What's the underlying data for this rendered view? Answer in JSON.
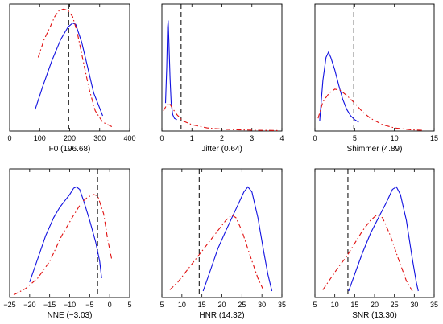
{
  "chart_data": [
    {
      "type": "line",
      "xlabel": "F0 (196.68)",
      "xlim": [
        0,
        400
      ],
      "xticks": [
        0,
        100,
        200,
        300,
        400
      ],
      "ylim": [
        0,
        1
      ],
      "grid": false,
      "marker_line": 196.68,
      "series": [
        {
          "color": "#1010e0",
          "dash": "",
          "points": [
            [
              85,
              0.17
            ],
            [
              110,
              0.35
            ],
            [
              140,
              0.55
            ],
            [
              170,
              0.72
            ],
            [
              195,
              0.82
            ],
            [
              210,
              0.85
            ],
            [
              220,
              0.84
            ],
            [
              240,
              0.7
            ],
            [
              260,
              0.5
            ],
            [
              280,
              0.3
            ],
            [
              300,
              0.18
            ],
            [
              310,
              0.12
            ]
          ]
        },
        {
          "color": "#e01010",
          "dash": "6,3,1.5,3",
          "points": [
            [
              95,
              0.58
            ],
            [
              115,
              0.72
            ],
            [
              135,
              0.82
            ],
            [
              150,
              0.9
            ],
            [
              165,
              0.95
            ],
            [
              180,
              0.96
            ],
            [
              195,
              0.95
            ],
            [
              210,
              0.9
            ],
            [
              225,
              0.78
            ],
            [
              245,
              0.55
            ],
            [
              265,
              0.33
            ],
            [
              285,
              0.16
            ],
            [
              310,
              0.07
            ],
            [
              345,
              0.03
            ]
          ]
        }
      ]
    },
    {
      "type": "line",
      "xlabel": "Jitter (0.64)",
      "xlim": [
        0,
        4
      ],
      "xticks": [
        0,
        1,
        2,
        3,
        4
      ],
      "ylim": [
        0,
        1
      ],
      "grid": false,
      "marker_line": 0.64,
      "series": [
        {
          "color": "#1010e0",
          "dash": "",
          "points": [
            [
              0.12,
              0.22
            ],
            [
              0.16,
              0.5
            ],
            [
              0.19,
              0.82
            ],
            [
              0.21,
              0.87
            ],
            [
              0.23,
              0.72
            ],
            [
              0.27,
              0.42
            ],
            [
              0.31,
              0.22
            ],
            [
              0.36,
              0.13
            ],
            [
              0.42,
              0.1
            ],
            [
              0.5,
              0.09
            ]
          ]
        },
        {
          "color": "#e01010",
          "dash": "6,3,1.5,3",
          "points": [
            [
              0.05,
              0.16
            ],
            [
              0.15,
              0.2
            ],
            [
              0.25,
              0.22
            ],
            [
              0.35,
              0.18
            ],
            [
              0.5,
              0.13
            ],
            [
              0.7,
              0.08
            ],
            [
              1.0,
              0.05
            ],
            [
              1.5,
              0.025
            ],
            [
              2.0,
              0.015
            ],
            [
              2.5,
              0.01
            ],
            [
              3.0,
              0.007
            ],
            [
              3.5,
              0.005
            ],
            [
              3.9,
              0.004
            ]
          ]
        }
      ]
    },
    {
      "type": "line",
      "xlabel": "Shimmer (4.89)",
      "xlim": [
        0,
        15
      ],
      "xticks": [
        0,
        5,
        10,
        15
      ],
      "ylim": [
        0,
        1
      ],
      "grid": false,
      "marker_line": 4.89,
      "series": [
        {
          "color": "#1010e0",
          "dash": "",
          "points": [
            [
              0.6,
              0.08
            ],
            [
              1.0,
              0.4
            ],
            [
              1.4,
              0.58
            ],
            [
              1.7,
              0.62
            ],
            [
              2.0,
              0.58
            ],
            [
              2.5,
              0.48
            ],
            [
              3.0,
              0.36
            ],
            [
              3.5,
              0.25
            ],
            [
              4.0,
              0.17
            ],
            [
              4.5,
              0.12
            ],
            [
              5.0,
              0.09
            ],
            [
              5.5,
              0.07
            ]
          ]
        },
        {
          "color": "#e01010",
          "dash": "6,3,1.5,3",
          "points": [
            [
              0.4,
              0.1
            ],
            [
              1.0,
              0.23
            ],
            [
              1.8,
              0.3
            ],
            [
              2.5,
              0.33
            ],
            [
              3.2,
              0.32
            ],
            [
              4.0,
              0.28
            ],
            [
              5.0,
              0.22
            ],
            [
              6.0,
              0.15
            ],
            [
              7.0,
              0.1
            ],
            [
              8.5,
              0.05
            ],
            [
              10,
              0.025
            ],
            [
              12,
              0.01
            ],
            [
              13.5,
              0.006
            ]
          ]
        }
      ]
    },
    {
      "type": "line",
      "xlabel": "NNE (−3.03)",
      "xlim": [
        -25,
        5
      ],
      "xticks": [
        -25,
        -20,
        -15,
        -10,
        -5,
        0,
        5
      ],
      "ylim": [
        0,
        1
      ],
      "grid": false,
      "marker_line": -3.03,
      "series": [
        {
          "color": "#1010e0",
          "dash": "",
          "points": [
            [
              -20,
              0.12
            ],
            [
              -18,
              0.3
            ],
            [
              -16,
              0.48
            ],
            [
              -14,
              0.62
            ],
            [
              -12.5,
              0.7
            ],
            [
              -11,
              0.76
            ],
            [
              -10,
              0.8
            ],
            [
              -9,
              0.85
            ],
            [
              -8.3,
              0.86
            ],
            [
              -7.5,
              0.84
            ],
            [
              -6.5,
              0.75
            ],
            [
              -5,
              0.6
            ],
            [
              -3.5,
              0.43
            ],
            [
              -2.5,
              0.28
            ],
            [
              -2,
              0.15
            ]
          ]
        },
        {
          "color": "#e01010",
          "dash": "6,3,1.5,3",
          "points": [
            [
              -24,
              0.02
            ],
            [
              -21,
              0.07
            ],
            [
              -18,
              0.15
            ],
            [
              -15,
              0.28
            ],
            [
              -12,
              0.48
            ],
            [
              -9,
              0.64
            ],
            [
              -7,
              0.74
            ],
            [
              -5.5,
              0.78
            ],
            [
              -4,
              0.8
            ],
            [
              -3,
              0.79
            ],
            [
              -1.5,
              0.65
            ],
            [
              -0.5,
              0.45
            ],
            [
              0.5,
              0.3
            ]
          ]
        }
      ]
    },
    {
      "type": "line",
      "xlabel": "HNR (14.32)",
      "xlim": [
        5,
        35
      ],
      "xticks": [
        5,
        10,
        15,
        20,
        25,
        30,
        35
      ],
      "ylim": [
        0,
        1
      ],
      "grid": false,
      "marker_line": 14.32,
      "series": [
        {
          "color": "#1010e0",
          "dash": "",
          "points": [
            [
              15.3,
              0.05
            ],
            [
              17,
              0.2
            ],
            [
              19,
              0.38
            ],
            [
              21,
              0.52
            ],
            [
              22.5,
              0.62
            ],
            [
              24,
              0.72
            ],
            [
              25.5,
              0.82
            ],
            [
              26.5,
              0.86
            ],
            [
              27.5,
              0.82
            ],
            [
              29,
              0.62
            ],
            [
              30.5,
              0.35
            ],
            [
              31.5,
              0.18
            ],
            [
              32.5,
              0.05
            ]
          ]
        },
        {
          "color": "#e01010",
          "dash": "6,3,1.5,3",
          "points": [
            [
              7,
              0.06
            ],
            [
              9,
              0.12
            ],
            [
              11,
              0.2
            ],
            [
              13,
              0.28
            ],
            [
              15,
              0.36
            ],
            [
              17,
              0.44
            ],
            [
              19,
              0.52
            ],
            [
              21,
              0.6
            ],
            [
              22.5,
              0.64
            ],
            [
              23.5,
              0.62
            ],
            [
              25,
              0.52
            ],
            [
              27,
              0.33
            ],
            [
              29,
              0.15
            ],
            [
              30.5,
              0.05
            ]
          ]
        }
      ]
    },
    {
      "type": "line",
      "xlabel": "SNR (13.30)",
      "xlim": [
        5,
        35
      ],
      "xticks": [
        5,
        10,
        15,
        20,
        25,
        30,
        35
      ],
      "ylim": [
        0,
        1
      ],
      "grid": false,
      "marker_line": 13.3,
      "series": [
        {
          "color": "#1010e0",
          "dash": "",
          "points": [
            [
              13.5,
              0.05
            ],
            [
              15,
              0.18
            ],
            [
              17,
              0.35
            ],
            [
              19,
              0.5
            ],
            [
              21,
              0.62
            ],
            [
              23,
              0.74
            ],
            [
              24.5,
              0.84
            ],
            [
              25.5,
              0.86
            ],
            [
              26.5,
              0.8
            ],
            [
              28,
              0.6
            ],
            [
              29.5,
              0.3
            ],
            [
              30.5,
              0.12
            ],
            [
              31,
              0.05
            ]
          ]
        },
        {
          "color": "#e01010",
          "dash": "6,3,1.5,3",
          "points": [
            [
              7,
              0.06
            ],
            [
              9,
              0.15
            ],
            [
              11,
              0.24
            ],
            [
              13,
              0.32
            ],
            [
              15,
              0.42
            ],
            [
              17,
              0.52
            ],
            [
              19,
              0.6
            ],
            [
              20.5,
              0.64
            ],
            [
              22,
              0.62
            ],
            [
              24,
              0.48
            ],
            [
              26,
              0.3
            ],
            [
              28,
              0.13
            ],
            [
              29.5,
              0.05
            ]
          ]
        }
      ]
    }
  ]
}
